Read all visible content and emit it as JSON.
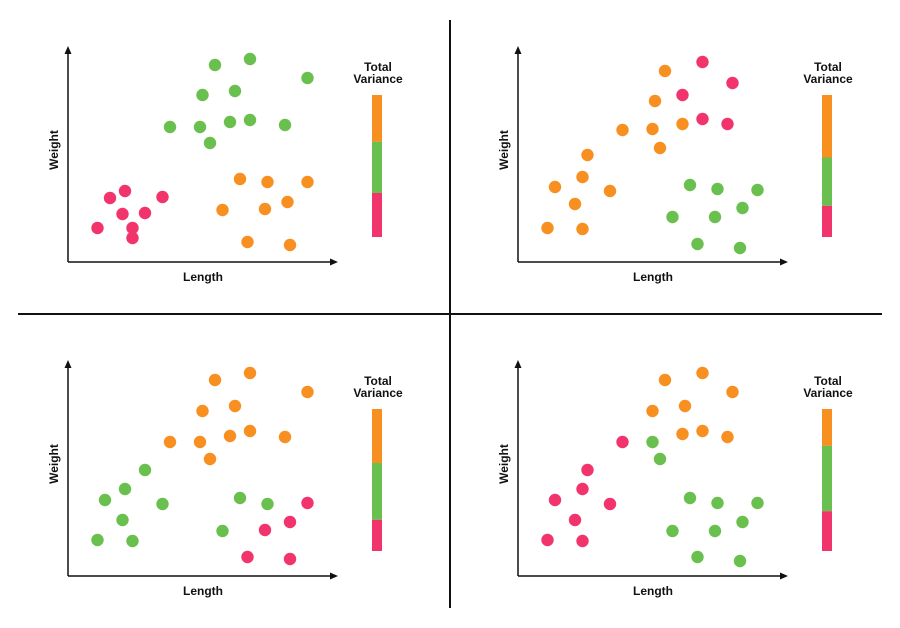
{
  "colors": {
    "red": "#f2346c",
    "green": "#69c04e",
    "orange": "#f79021",
    "axis": "#111111"
  },
  "chart_data": [
    {
      "type": "scatter",
      "xlabel": "Length",
      "ylabel": "Weight",
      "variance_label": [
        "Total",
        "Variance"
      ],
      "variance_bar": [
        {
          "color": "orange",
          "fraction": 0.33
        },
        {
          "color": "green",
          "fraction": 0.36
        },
        {
          "color": "red",
          "fraction": 0.31
        }
      ],
      "points": [
        {
          "x": 21,
          "y": 24,
          "c": "red"
        },
        {
          "x": 26,
          "y": 49,
          "c": "red"
        },
        {
          "x": 18,
          "y": 71,
          "c": "red"
        },
        {
          "x": 33,
          "y": 65,
          "c": "red"
        },
        {
          "x": 12,
          "y": 64,
          "c": "red"
        },
        {
          "x": 17,
          "y": 48,
          "c": "red"
        },
        {
          "x": 7,
          "y": 34,
          "c": "red"
        },
        {
          "x": 21,
          "y": 34,
          "c": "red"
        },
        {
          "x": 54,
          "y": 197,
          "c": "green"
        },
        {
          "x": 68,
          "y": 203,
          "c": "green"
        },
        {
          "x": 91,
          "y": 184,
          "c": "green"
        },
        {
          "x": 49,
          "y": 167,
          "c": "green"
        },
        {
          "x": 62,
          "y": 171,
          "c": "green"
        },
        {
          "x": 36,
          "y": 135,
          "c": "green"
        },
        {
          "x": 48,
          "y": 135,
          "c": "green"
        },
        {
          "x": 60,
          "y": 140,
          "c": "green"
        },
        {
          "x": 68,
          "y": 142,
          "c": "green"
        },
        {
          "x": 82,
          "y": 137,
          "c": "green"
        },
        {
          "x": 52,
          "y": 119,
          "c": "green"
        },
        {
          "x": 64,
          "y": 83,
          "c": "orange"
        },
        {
          "x": 75,
          "y": 80,
          "c": "orange"
        },
        {
          "x": 91,
          "y": 80,
          "c": "orange"
        },
        {
          "x": 57,
          "y": 52,
          "c": "orange"
        },
        {
          "x": 74,
          "y": 53,
          "c": "orange"
        },
        {
          "x": 83,
          "y": 60,
          "c": "orange"
        },
        {
          "x": 67,
          "y": 20,
          "c": "orange"
        },
        {
          "x": 84,
          "y": 17,
          "c": "orange"
        }
      ]
    },
    {
      "type": "scatter",
      "xlabel": "Length",
      "ylabel": "Weight",
      "variance_label": [
        "Total",
        "Variance"
      ],
      "variance_bar": [
        {
          "color": "orange",
          "fraction": 0.44
        },
        {
          "color": "green",
          "fraction": 0.34
        },
        {
          "color": "red",
          "fraction": 0.22
        }
      ],
      "points": [
        {
          "x": 69,
          "y": 200,
          "c": "red"
        },
        {
          "x": 81,
          "y": 179,
          "c": "red"
        },
        {
          "x": 61,
          "y": 167,
          "c": "red"
        },
        {
          "x": 69,
          "y": 143,
          "c": "red"
        },
        {
          "x": 79,
          "y": 138,
          "c": "red"
        },
        {
          "x": 54,
          "y": 191,
          "c": "orange"
        },
        {
          "x": 50,
          "y": 161,
          "c": "orange"
        },
        {
          "x": 37,
          "y": 132,
          "c": "orange"
        },
        {
          "x": 49,
          "y": 133,
          "c": "orange"
        },
        {
          "x": 61,
          "y": 138,
          "c": "orange"
        },
        {
          "x": 52,
          "y": 114,
          "c": "orange"
        },
        {
          "x": 23,
          "y": 107,
          "c": "orange"
        },
        {
          "x": 21,
          "y": 85,
          "c": "orange"
        },
        {
          "x": 10,
          "y": 75,
          "c": "orange"
        },
        {
          "x": 18,
          "y": 58,
          "c": "orange"
        },
        {
          "x": 32,
          "y": 71,
          "c": "orange"
        },
        {
          "x": 7,
          "y": 34,
          "c": "orange"
        },
        {
          "x": 21,
          "y": 33,
          "c": "orange"
        },
        {
          "x": 64,
          "y": 77,
          "c": "green"
        },
        {
          "x": 75,
          "y": 73,
          "c": "green"
        },
        {
          "x": 91,
          "y": 72,
          "c": "green"
        },
        {
          "x": 57,
          "y": 45,
          "c": "green"
        },
        {
          "x": 74,
          "y": 45,
          "c": "green"
        },
        {
          "x": 85,
          "y": 54,
          "c": "green"
        },
        {
          "x": 67,
          "y": 18,
          "c": "green"
        },
        {
          "x": 84,
          "y": 14,
          "c": "green"
        }
      ]
    },
    {
      "type": "scatter",
      "xlabel": "Length",
      "ylabel": "Weight",
      "variance_label": [
        "Total",
        "Variance"
      ],
      "variance_bar": [
        {
          "color": "orange",
          "fraction": 0.38
        },
        {
          "color": "green",
          "fraction": 0.4
        },
        {
          "color": "red",
          "fraction": 0.22
        }
      ],
      "points": [
        {
          "x": 54,
          "y": 196,
          "c": "orange"
        },
        {
          "x": 68,
          "y": 203,
          "c": "orange"
        },
        {
          "x": 91,
          "y": 184,
          "c": "orange"
        },
        {
          "x": 49,
          "y": 165,
          "c": "orange"
        },
        {
          "x": 62,
          "y": 170,
          "c": "orange"
        },
        {
          "x": 36,
          "y": 134,
          "c": "orange"
        },
        {
          "x": 48,
          "y": 134,
          "c": "orange"
        },
        {
          "x": 60,
          "y": 140,
          "c": "orange"
        },
        {
          "x": 68,
          "y": 145,
          "c": "orange"
        },
        {
          "x": 82,
          "y": 139,
          "c": "orange"
        },
        {
          "x": 52,
          "y": 117,
          "c": "orange"
        },
        {
          "x": 26,
          "y": 106,
          "c": "green"
        },
        {
          "x": 18,
          "y": 87,
          "c": "green"
        },
        {
          "x": 10,
          "y": 76,
          "c": "green"
        },
        {
          "x": 33,
          "y": 72,
          "c": "green"
        },
        {
          "x": 17,
          "y": 56,
          "c": "green"
        },
        {
          "x": 7,
          "y": 36,
          "c": "green"
        },
        {
          "x": 21,
          "y": 35,
          "c": "green"
        },
        {
          "x": 64,
          "y": 78,
          "c": "green"
        },
        {
          "x": 75,
          "y": 72,
          "c": "green"
        },
        {
          "x": 57,
          "y": 45,
          "c": "green"
        },
        {
          "x": 91,
          "y": 73,
          "c": "red"
        },
        {
          "x": 84,
          "y": 54,
          "c": "red"
        },
        {
          "x": 74,
          "y": 46,
          "c": "red"
        },
        {
          "x": 67,
          "y": 19,
          "c": "red"
        },
        {
          "x": 84,
          "y": 17,
          "c": "red"
        }
      ]
    },
    {
      "type": "scatter",
      "xlabel": "Length",
      "ylabel": "Weight",
      "variance_label": [
        "Total",
        "Variance"
      ],
      "variance_bar": [
        {
          "color": "orange",
          "fraction": 0.26
        },
        {
          "color": "green",
          "fraction": 0.46
        },
        {
          "color": "red",
          "fraction": 0.28
        }
      ],
      "points": [
        {
          "x": 54,
          "y": 196,
          "c": "orange"
        },
        {
          "x": 69,
          "y": 203,
          "c": "orange"
        },
        {
          "x": 81,
          "y": 184,
          "c": "orange"
        },
        {
          "x": 49,
          "y": 165,
          "c": "orange"
        },
        {
          "x": 62,
          "y": 170,
          "c": "orange"
        },
        {
          "x": 61,
          "y": 142,
          "c": "orange"
        },
        {
          "x": 69,
          "y": 145,
          "c": "orange"
        },
        {
          "x": 79,
          "y": 139,
          "c": "orange"
        },
        {
          "x": 37,
          "y": 134,
          "c": "red"
        },
        {
          "x": 23,
          "y": 106,
          "c": "red"
        },
        {
          "x": 21,
          "y": 87,
          "c": "red"
        },
        {
          "x": 10,
          "y": 76,
          "c": "red"
        },
        {
          "x": 32,
          "y": 72,
          "c": "red"
        },
        {
          "x": 18,
          "y": 56,
          "c": "red"
        },
        {
          "x": 7,
          "y": 36,
          "c": "red"
        },
        {
          "x": 21,
          "y": 35,
          "c": "red"
        },
        {
          "x": 49,
          "y": 134,
          "c": "green"
        },
        {
          "x": 52,
          "y": 117,
          "c": "green"
        },
        {
          "x": 64,
          "y": 78,
          "c": "green"
        },
        {
          "x": 75,
          "y": 73,
          "c": "green"
        },
        {
          "x": 91,
          "y": 73,
          "c": "green"
        },
        {
          "x": 57,
          "y": 45,
          "c": "green"
        },
        {
          "x": 74,
          "y": 45,
          "c": "green"
        },
        {
          "x": 85,
          "y": 54,
          "c": "green"
        },
        {
          "x": 67,
          "y": 19,
          "c": "green"
        },
        {
          "x": 84,
          "y": 15,
          "c": "green"
        }
      ]
    }
  ]
}
